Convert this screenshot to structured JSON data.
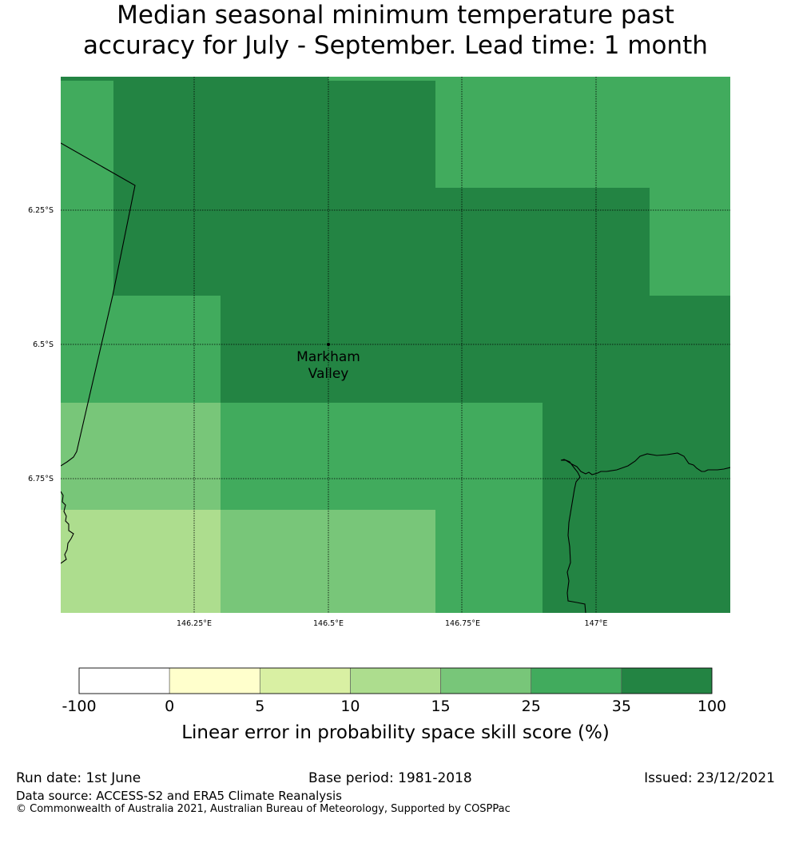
{
  "title": {
    "line1": "Median seasonal minimum temperature past",
    "line2": "accuracy for July - September. Lead time: 1 month"
  },
  "map": {
    "lat_labels": [
      "6.25°S",
      "6.5°S",
      "6.75°S"
    ],
    "lon_labels": [
      "146.25°E",
      "146.5°E",
      "146.75°E",
      "147°E"
    ],
    "location": {
      "name_line1": "Markham",
      "name_line2": "Valley"
    }
  },
  "colorbar": {
    "ticks": [
      "-100",
      "0",
      "5",
      "10",
      "15",
      "25",
      "35",
      "100"
    ],
    "colors": [
      "#ffffff",
      "#ffffcc",
      "#d9f0a3",
      "#addd8e",
      "#78c679",
      "#41ab5d",
      "#238443"
    ],
    "label": "Linear error in probability space skill score (%)"
  },
  "footer": {
    "run_date": "Run date: 1st June",
    "base_period": "Base period: 1981-2018",
    "issued": "Issued: 23/12/2021",
    "data_source": "Data source: ACCESS-S2 and ERA5 Climate Reanalysis",
    "copyright": "© Commonwealth of Australia 2021, Australian Bureau of Meteorology, Supported by COSPPac"
  }
}
